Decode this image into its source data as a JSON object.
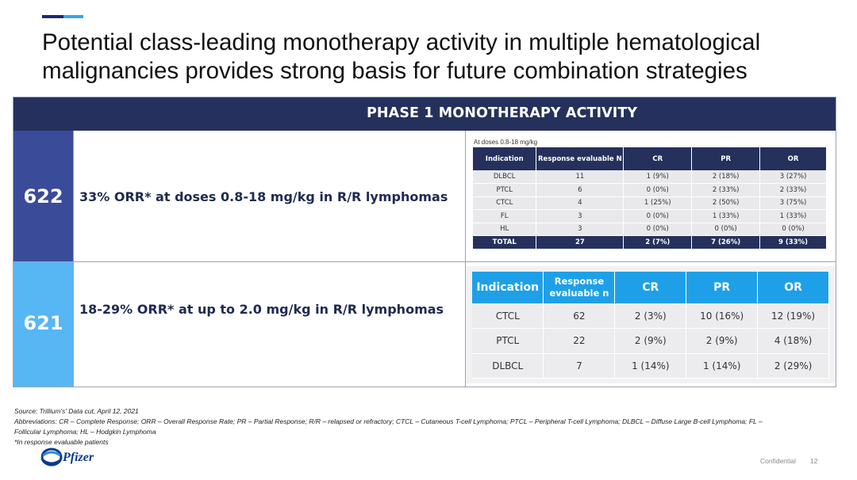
{
  "title": "Potential class-leading monotherapy activity in multiple hematological malignancies provides strong basis for future combination strategies",
  "banner": "PHASE 1 MONOTHERAPY ACTIVITY",
  "rows": [
    {
      "id": "622",
      "desc": "33% ORR* at doses 0.8-18 mg/kg in R/R lymphomas"
    },
    {
      "id": "621",
      "desc": "18-29% ORR* at up to 2.0 mg/kg in R/R lymphomas"
    }
  ],
  "table1": {
    "caption": "At doses 0.8-18 mg/kg",
    "headers": [
      "Indication",
      "Response evaluable N",
      "CR",
      "PR",
      "OR"
    ],
    "rows": [
      [
        "DLBCL",
        "11",
        "1 (9%)",
        "2 (18%)",
        "3 (27%)"
      ],
      [
        "PTCL",
        "6",
        "0 (0%)",
        "2 (33%)",
        "2 (33%)"
      ],
      [
        "CTCL",
        "4",
        "1 (25%)",
        "2 (50%)",
        "3 (75%)"
      ],
      [
        "FL",
        "3",
        "0 (0%)",
        "1 (33%)",
        "1 (33%)"
      ],
      [
        "HL",
        "3",
        "0 (0%)",
        "0 (0%)",
        "0 (0%)"
      ]
    ],
    "total": [
      "TOTAL",
      "27",
      "2 (7%)",
      "7 (26%)",
      "9 (33%)"
    ]
  },
  "table2": {
    "headers": [
      "Indication",
      "Response evaluable n",
      "CR",
      "PR",
      "OR"
    ],
    "rows": [
      [
        "CTCL",
        "62",
        "2 (3%)",
        "10 (16%)",
        "12 (19%)"
      ],
      [
        "PTCL",
        "22",
        "2 (9%)",
        "2 (9%)",
        "4 (18%)"
      ],
      [
        "DLBCL",
        "7",
        "1 (14%)",
        "1 (14%)",
        "2 (29%)"
      ]
    ]
  },
  "footnotes": {
    "source": "Source: Trillium's' Data cut, April 12, 2021",
    "abbrev": "Abbreviations: CR – Complete Response; ORR – Overall Response Rate; PR – Partial Response; R/R – relapsed or refractory; CTCL – Cutaneous T-cell Lymphoma; PTCL – Peripheral T-cell Lymphoma; DLBCL – Diffuse Large B-cell Lymphoma; FL – Follicular Lymphoma; HL – Hodgkin Lymphoma",
    "note": "*In response evaluable patients"
  },
  "logo_text": "Pfizer",
  "confidential": "Confidential",
  "page_number": "12"
}
